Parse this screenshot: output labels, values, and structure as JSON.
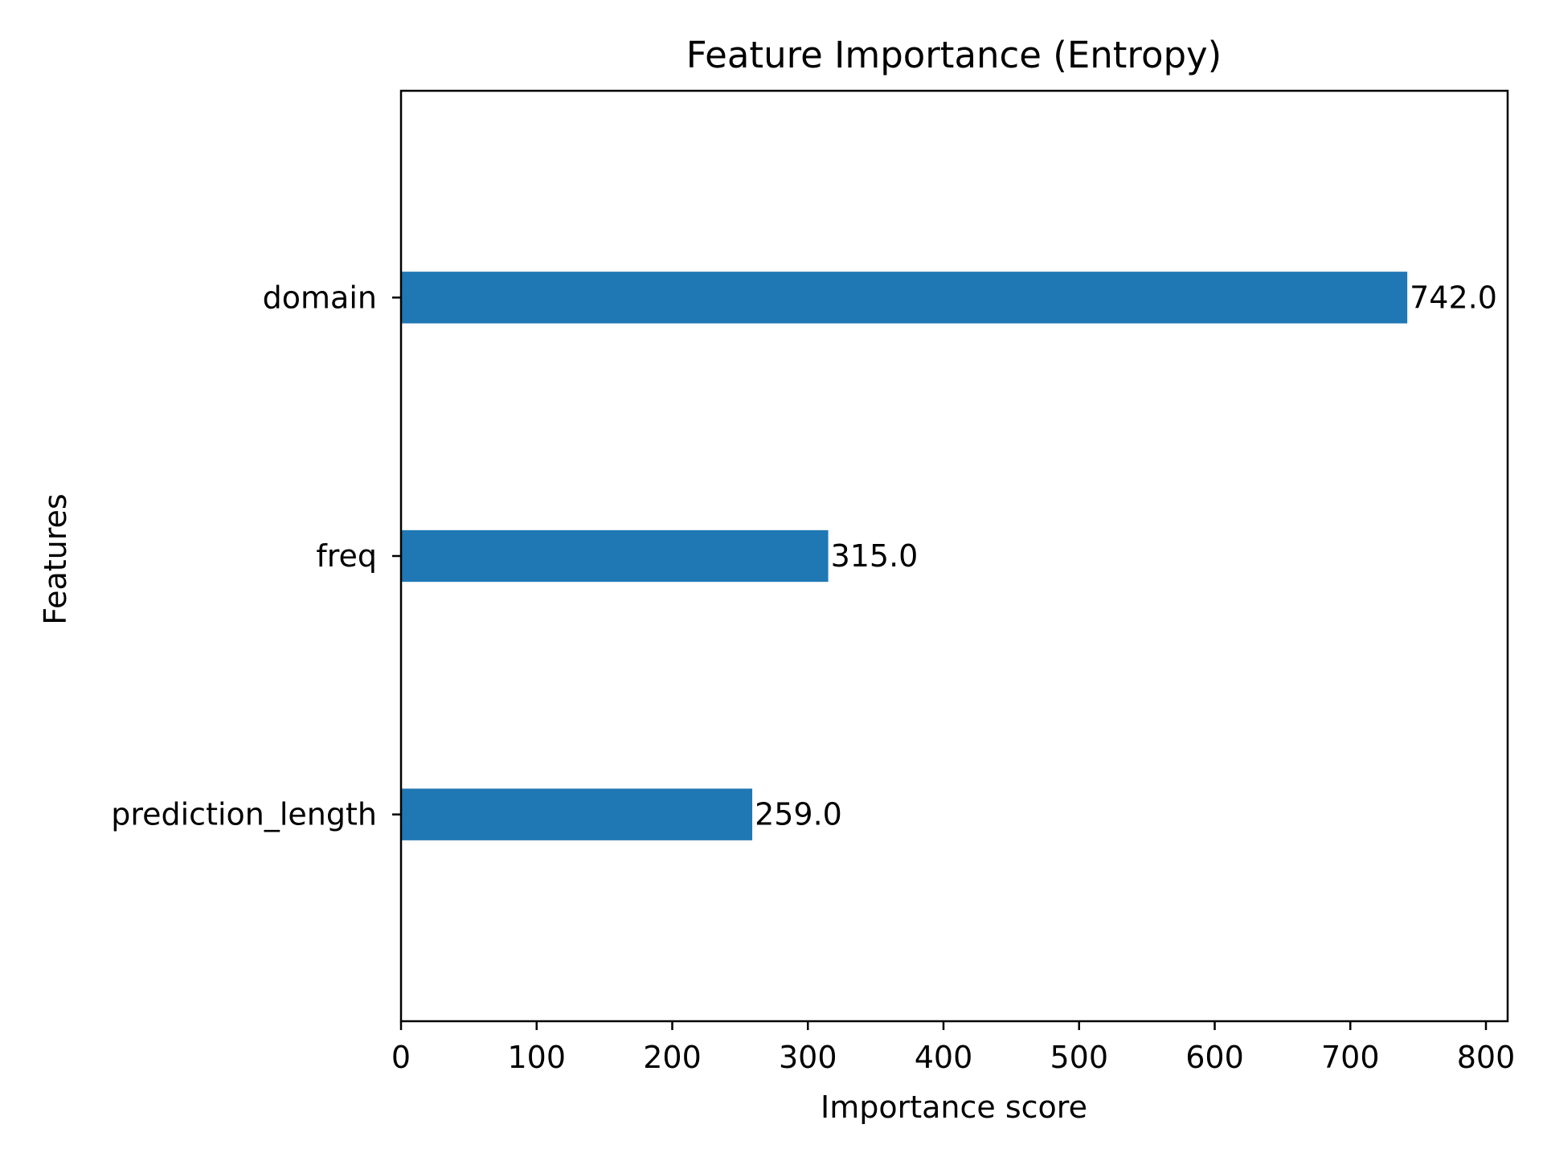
{
  "chart_data": {
    "type": "bar",
    "orientation": "horizontal",
    "title": "Feature Importance (Entropy)",
    "xlabel": "Importance score",
    "ylabel": "Features",
    "categories": [
      "domain",
      "freq",
      "prediction_length"
    ],
    "values": [
      742.0,
      315.0,
      259.0
    ],
    "value_labels": [
      "742.0",
      "315.0",
      "259.0"
    ],
    "xlim": [
      0,
      816
    ],
    "xticks": [
      0,
      100,
      200,
      300,
      400,
      500,
      600,
      700,
      800
    ],
    "xtick_labels": [
      "0",
      "100",
      "200",
      "300",
      "400",
      "500",
      "600",
      "700",
      "800"
    ],
    "grid": false,
    "bar_color": "#1f77b4"
  }
}
